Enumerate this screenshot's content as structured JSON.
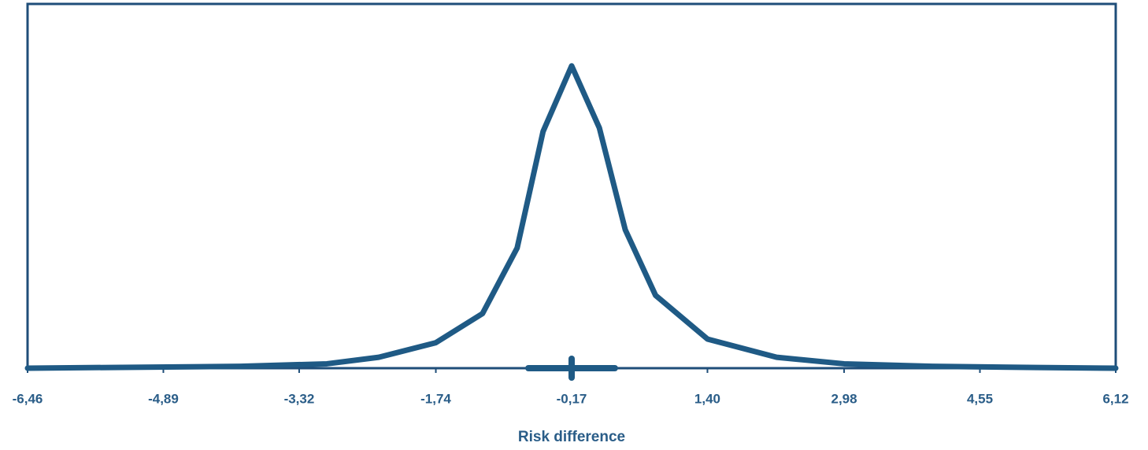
{
  "chart_data": {
    "type": "line",
    "x_label": "Risk difference",
    "x": [
      -6.46,
      -5.5,
      -4.0,
      -3.0,
      -2.4,
      -1.74,
      -1.2,
      -0.8,
      -0.5,
      -0.17,
      0.15,
      0.45,
      0.8,
      1.4,
      2.2,
      2.98,
      4.0,
      5.2,
      6.12
    ],
    "series": [
      {
        "color": "#1f5a85",
        "values": [
          0,
          0.002,
          0.005,
          0.012,
          0.03,
          0.07,
          0.15,
          0.33,
          0.65,
          0.83,
          0.66,
          0.38,
          0.2,
          0.08,
          0.03,
          0.012,
          0.005,
          0.002,
          0
        ]
      }
    ],
    "interval": [
      -0.67,
      0.33
    ],
    "point": -0.17,
    "xlim": [
      -6.46,
      6.12
    ],
    "ylim": [
      0,
      1
    ],
    "xticks": [
      {
        "value": -6.46,
        "label": "-6,46"
      },
      {
        "value": -4.89,
        "label": "-4,89"
      },
      {
        "value": -3.32,
        "label": "-3,32"
      },
      {
        "value": -1.74,
        "label": "-1,74"
      },
      {
        "value": -0.17,
        "label": "-0,17"
      },
      {
        "value": 1.4,
        "label": "1,40"
      },
      {
        "value": 2.98,
        "label": "2,98"
      },
      {
        "value": 4.55,
        "label": "4,55"
      },
      {
        "value": 6.12,
        "label": "6,12"
      }
    ]
  }
}
